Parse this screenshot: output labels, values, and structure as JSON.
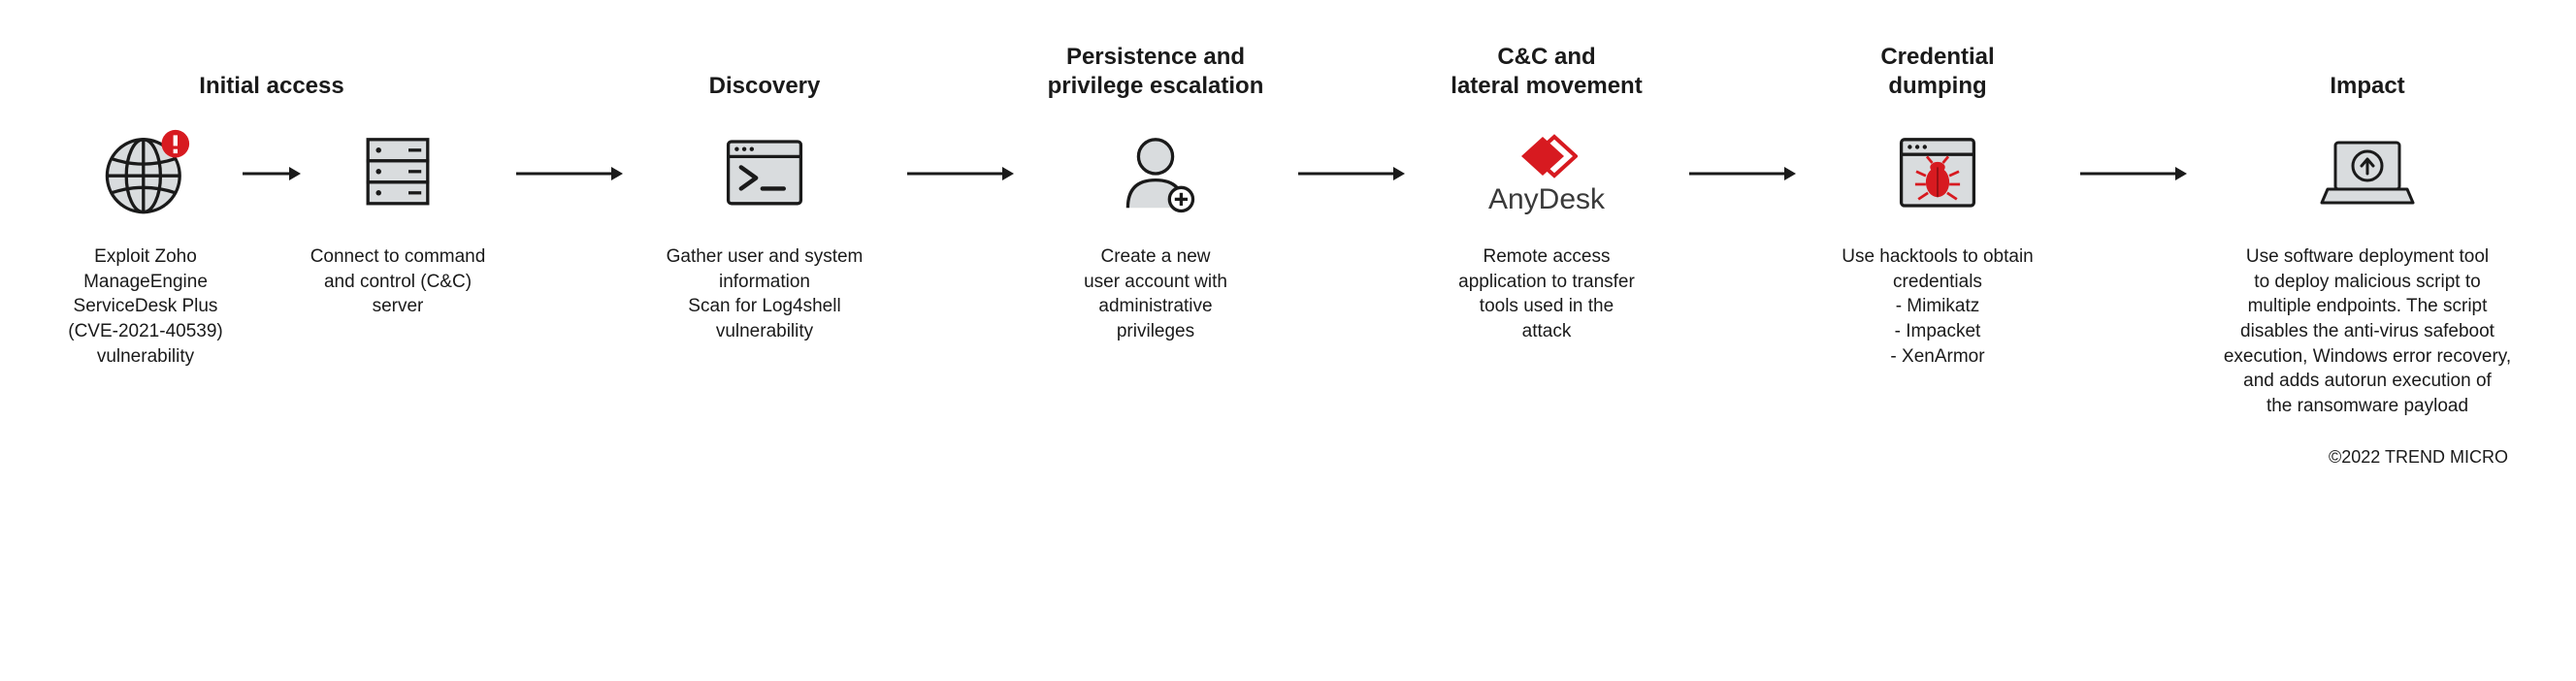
{
  "colors": {
    "stroke": "#1a1a1a",
    "fill_grey": "#d9dcde",
    "accent_red": "#d71a20",
    "white": "#ffffff",
    "text": "#1a1a1a"
  },
  "arrow_width": 120,
  "stages": {
    "initial_access": {
      "title": "Initial access",
      "node1_desc": "Exploit Zoho\nManageEngine\nServiceDesk Plus\n(CVE-2021-40539)\nvulnerability",
      "node2_desc": "Connect to command\nand control (C&C)\nserver"
    },
    "discovery": {
      "title": "Discovery",
      "desc": "Gather user and system\ninformation\nScan for Log4shell\nvulnerability"
    },
    "persistence": {
      "title": "Persistence and\nprivilege escalation",
      "desc": "Create a new\nuser account with\nadministrative\nprivileges"
    },
    "cc": {
      "title": "C&C and\nlateral movement",
      "brand": "AnyDesk",
      "desc": "Remote access\napplication to transfer\ntools used in the\nattack"
    },
    "cred": {
      "title": "Credential\ndumping",
      "desc": "Use hacktools to obtain\ncredentials\n- Mimikatz\n- Impacket\n- XenArmor"
    },
    "impact": {
      "title": "Impact",
      "desc": "Use software deployment tool\nto deploy malicious script to\nmultiple endpoints. The script\ndisables the anti-virus safeboot\nexecution, Windows error recovery,\nand adds autorun execution of\nthe ransomware payload"
    }
  },
  "copyright": "©2022 TREND MICRO"
}
